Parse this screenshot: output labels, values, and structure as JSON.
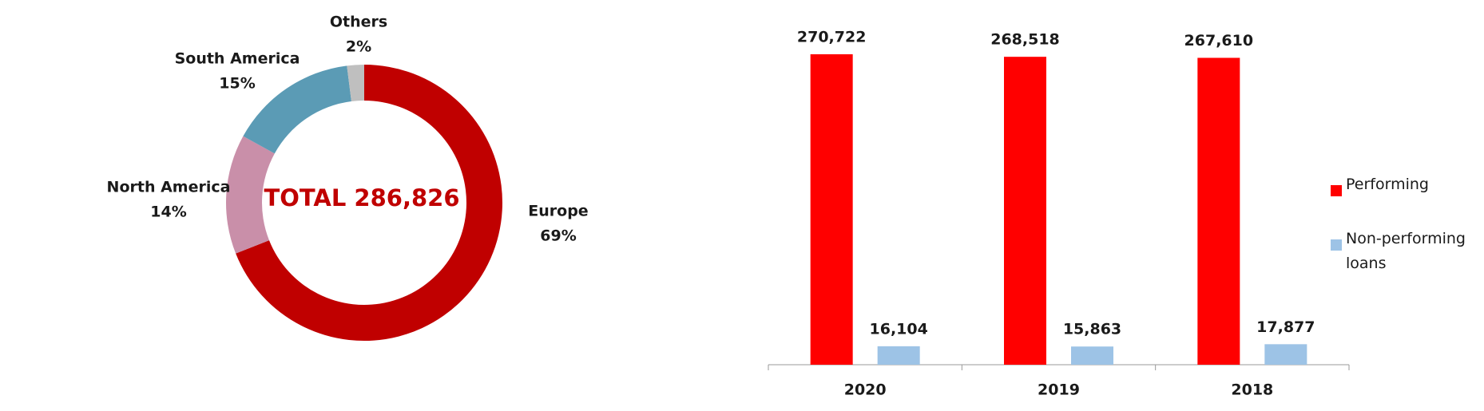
{
  "chart_data": [
    {
      "type": "pie",
      "title": "TOTAL 286,826",
      "categories": [
        "Europe",
        "North America",
        "South America",
        "Others"
      ],
      "values": [
        69,
        14,
        15,
        2
      ],
      "value_labels": [
        "69%",
        "14%",
        "15%",
        "2%"
      ],
      "colors": [
        "#c00000",
        "#c98fa9",
        "#5b9bb5",
        "#bfbfbf"
      ]
    },
    {
      "type": "bar",
      "categories": [
        "2020",
        "2019",
        "2018"
      ],
      "series": [
        {
          "name": "Performing",
          "color": "#ff0000",
          "values": [
            270722,
            268518,
            267610
          ],
          "value_labels": [
            "270,722",
            "268,518",
            "267,610"
          ]
        },
        {
          "name": "Non-performing loans",
          "color": "#9dc3e6",
          "values": [
            16104,
            15863,
            17877
          ],
          "value_labels": [
            "16,104",
            "15,863",
            "17,877"
          ]
        }
      ],
      "legend": "right"
    }
  ]
}
